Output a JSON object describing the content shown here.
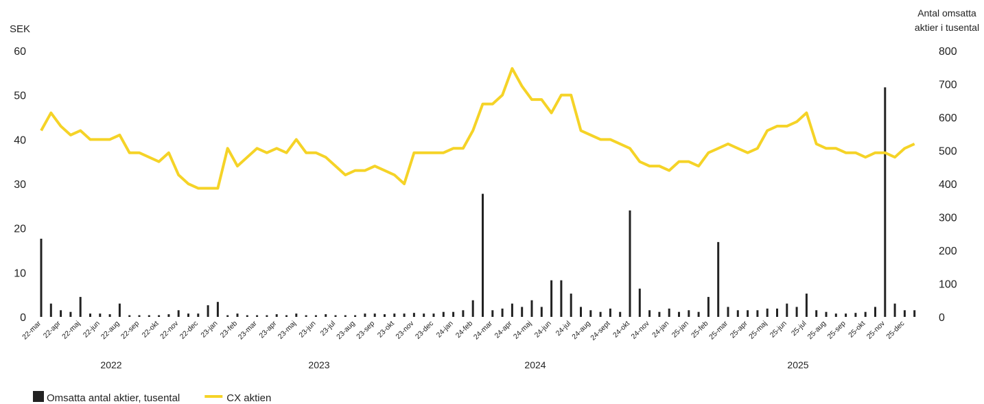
{
  "chart_data": {
    "type": "bar_line",
    "y_label": "SEK",
    "y2_label": [
      "Antal omsatta",
      "aktier i tusental"
    ],
    "categories": [
      "22-mar",
      null,
      "22-apr",
      null,
      "22-maj",
      null,
      "22-jun",
      null,
      "22-aug",
      null,
      "22-sep",
      null,
      "22-okt",
      null,
      "22-nov",
      null,
      "22-dec",
      null,
      "23-jan",
      null,
      "23-feb",
      null,
      "23-mar",
      null,
      "23-apr",
      null,
      "23-maj",
      null,
      "23-jun",
      null,
      "23-jul",
      null,
      "23-aug",
      null,
      "23-sep",
      null,
      "23-okt",
      null,
      "23-nov",
      null,
      "23-dec",
      null,
      "24-jan",
      null,
      "24-feb",
      null,
      "24-mar",
      null,
      "24-apr",
      null,
      "24-maj",
      null,
      "24-jun",
      null,
      "24-jul",
      null,
      "24-aug",
      null,
      "24-sept",
      null,
      "24-okt",
      null,
      "24-nov",
      null,
      "24-jan",
      null,
      "25-jan",
      null,
      "25-feb",
      null,
      "25-mar",
      null,
      "25-apr",
      null,
      "25-maj",
      null,
      "25-jun",
      null,
      "25-jul",
      null,
      "25-aug",
      null,
      "25-sep",
      null,
      "25-okt",
      null,
      "25-nov",
      null,
      "25-dec",
      null
    ],
    "years": [
      "2022",
      "2023",
      "2024",
      "2025"
    ],
    "series": [
      {
        "name": "Omsatta antal aktier, tusental",
        "type": "bar",
        "axis": "y2",
        "color": "#222222",
        "values": [
          235,
          40,
          20,
          15,
          60,
          10,
          10,
          8,
          40,
          5,
          5,
          5,
          5,
          8,
          20,
          10,
          10,
          35,
          45,
          5,
          10,
          5,
          5,
          5,
          8,
          5,
          10,
          5,
          5,
          8,
          5,
          5,
          5,
          10,
          10,
          8,
          10,
          10,
          12,
          10,
          10,
          15,
          15,
          20,
          50,
          370,
          20,
          25,
          40,
          30,
          50,
          30,
          110,
          110,
          70,
          30,
          20,
          15,
          25,
          15,
          320,
          85,
          20,
          15,
          25,
          15,
          20,
          15,
          60,
          225,
          30,
          20,
          20,
          20,
          25,
          25,
          40,
          30,
          70,
          20,
          15,
          10,
          10,
          12,
          15,
          30,
          690,
          40,
          20,
          20
        ]
      },
      {
        "name": "CX aktien",
        "type": "line",
        "color": "#f5d327",
        "values": [
          42,
          46,
          43,
          41,
          42,
          40,
          40,
          40,
          41,
          37,
          37,
          36,
          35,
          37,
          32,
          30,
          29,
          29,
          29,
          38,
          34,
          36,
          38,
          37,
          38,
          37,
          40,
          37,
          37,
          36,
          34,
          32,
          33,
          33,
          34,
          33,
          32,
          30,
          37,
          37,
          37,
          37,
          38,
          38,
          42,
          48,
          48,
          50,
          56,
          52,
          49,
          49,
          46,
          50,
          50,
          42,
          41,
          40,
          40,
          39,
          38,
          35,
          34,
          34,
          33,
          35,
          35,
          34,
          37,
          38,
          39,
          38,
          37,
          38,
          42,
          43,
          43,
          44,
          46,
          39,
          38,
          38,
          37,
          37,
          36,
          37,
          37,
          36,
          38,
          39
        ]
      }
    ],
    "ylim": [
      0,
      60
    ],
    "yticks": [
      0,
      10,
      20,
      30,
      40,
      50,
      60
    ],
    "y2lim": [
      0,
      800
    ],
    "y2ticks": [
      0,
      100,
      200,
      300,
      400,
      500,
      600,
      700,
      800
    ]
  }
}
